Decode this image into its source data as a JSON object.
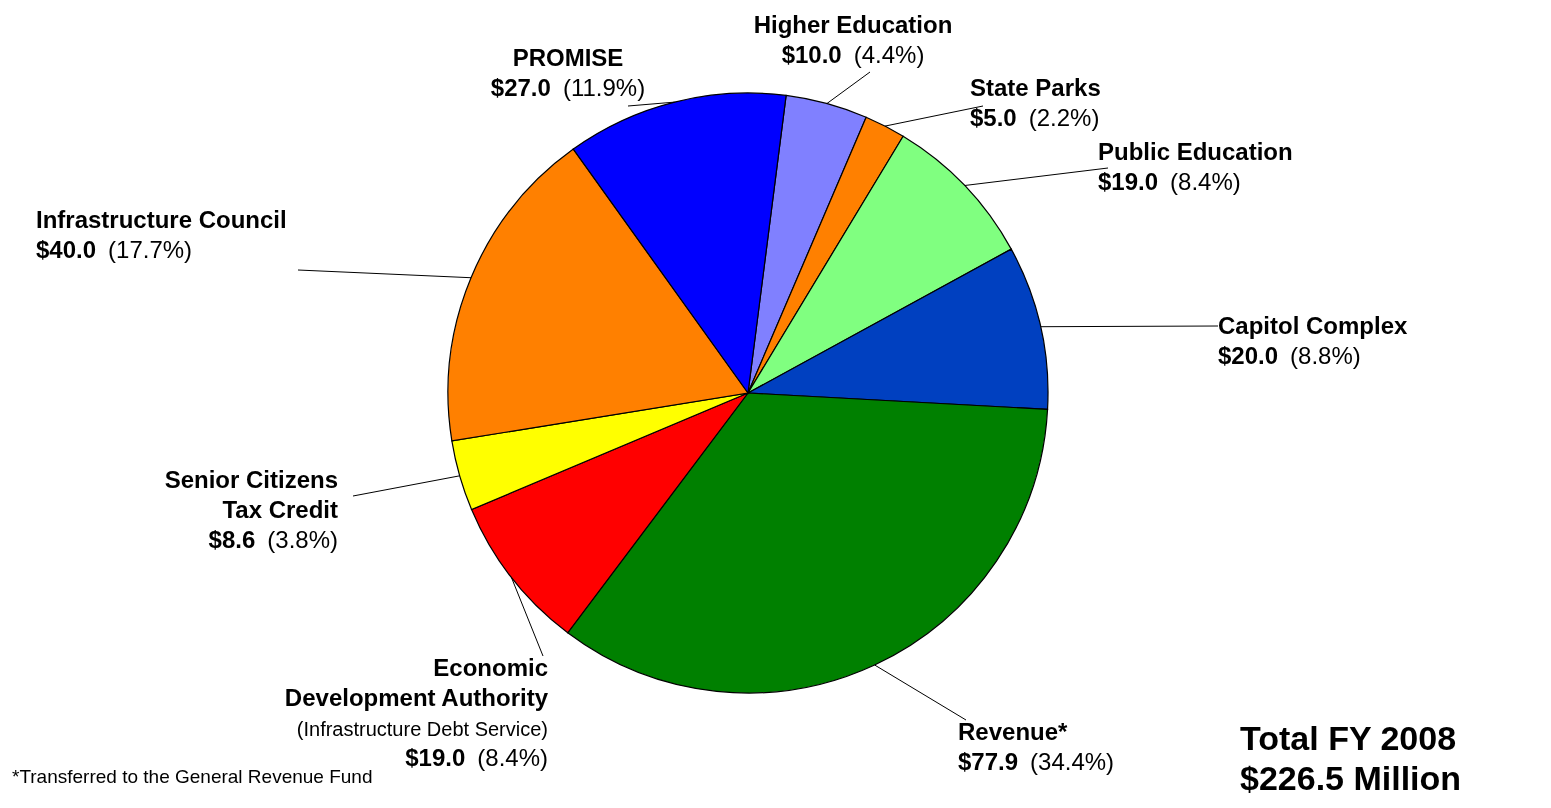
{
  "chart_data": {
    "type": "pie",
    "title": "Total FY 2008\n$226.5 Million",
    "categories": [
      "Higher Education",
      "State Parks",
      "Public Education",
      "Capitol Complex",
      "Revenue*",
      "Economic\nDevelopment Authority\n(Infrastructure Debt Service)",
      "Senior Citizens\nTax Credit",
      "Infrastructure Council",
      "PROMISE"
    ],
    "values": [
      10.0,
      5.0,
      19.0,
      20.0,
      77.9,
      19.0,
      8.6,
      40.0,
      27.0
    ],
    "value_labels": [
      "$10.0",
      "$5.0",
      "$19.0",
      "$20.0",
      "$77.9",
      "$19.0",
      "$8.6",
      "$40.0",
      "$27.0"
    ],
    "colors": [
      "#8080ff",
      "#ff8000",
      "#80ff80",
      "#0040c0",
      "#008000",
      "#ff0000",
      "#ffff00",
      "#ff8000",
      "#0000ff"
    ],
    "annotations": [
      {
        "text": "(4.4%)",
        "x": "Higher Education"
      },
      {
        "text": "(2.2%)",
        "x": "State Parks"
      },
      {
        "text": "(8.4%)",
        "x": "Public Education"
      },
      {
        "text": "(8.8%)",
        "x": "Capitol Complex"
      },
      {
        "text": "(34.4%)",
        "x": "Revenue*"
      },
      {
        "text": "(8.4%)",
        "x": "Economic\nDevelopment Authority\n(Infrastructure Debt Service)"
      },
      {
        "text": "(3.8%)",
        "x": "Senior Citizens\nTax Credit"
      },
      {
        "text": "(17.7%)",
        "x": "Infrastructure Council"
      },
      {
        "text": "(11.9%)",
        "x": "PROMISE"
      },
      "*Transferred to the General Revenue Fund"
    ]
  }
}
